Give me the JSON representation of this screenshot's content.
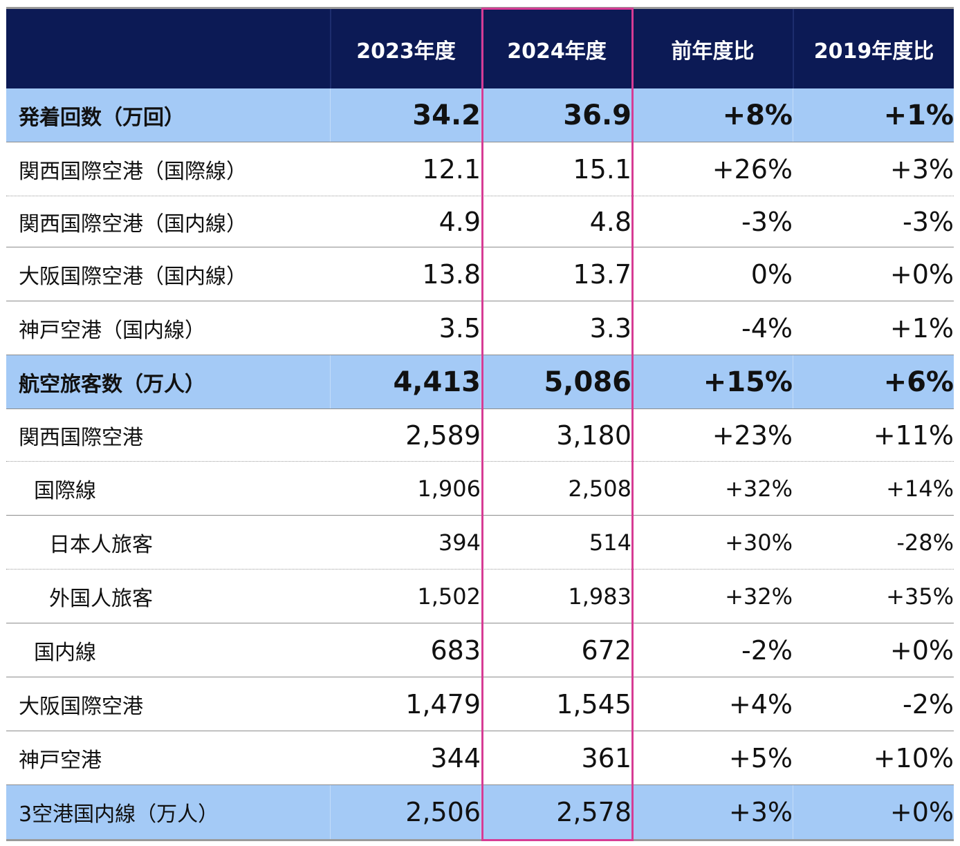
{
  "header": {
    "col0": "",
    "col1": "2023年度",
    "col2": "2024年度",
    "col3": "前年度比",
    "col4": "2019年度比"
  },
  "rows": [
    {
      "label": "発着回数（万回）",
      "v2023": "34.2",
      "v2024": "36.9",
      "yoy": "+8%",
      "vs2019": "+1%"
    },
    {
      "label": "関西国際空港（国際線）",
      "v2023": "12.1",
      "v2024": "15.1",
      "yoy": "+26%",
      "vs2019": "+3%"
    },
    {
      "label": "関西国際空港（国内線）",
      "v2023": "4.9",
      "v2024": "4.8",
      "yoy": "-3%",
      "vs2019": "-3%"
    },
    {
      "label": "大阪国際空港（国内線）",
      "v2023": "13.8",
      "v2024": "13.7",
      "yoy": "0%",
      "vs2019": "+0%"
    },
    {
      "label": "神戸空港（国内線）",
      "v2023": "3.5",
      "v2024": "3.3",
      "yoy": "-4%",
      "vs2019": "+1%"
    },
    {
      "label": "航空旅客数（万人）",
      "v2023": "4,413",
      "v2024": "5,086",
      "yoy": "+15%",
      "vs2019": "+6%"
    },
    {
      "label": "関西国際空港",
      "v2023": "2,589",
      "v2024": "3,180",
      "yoy": "+23%",
      "vs2019": "+11%"
    },
    {
      "label": "国際線",
      "v2023": "1,906",
      "v2024": "2,508",
      "yoy": "+32%",
      "vs2019": "+14%"
    },
    {
      "label": "日本人旅客",
      "v2023": "394",
      "v2024": "514",
      "yoy": "+30%",
      "vs2019": "-28%"
    },
    {
      "label": "外国人旅客",
      "v2023": "1,502",
      "v2024": "1,983",
      "yoy": "+32%",
      "vs2019": "+35%"
    },
    {
      "label": "国内線",
      "v2023": "683",
      "v2024": "672",
      "yoy": "-2%",
      "vs2019": "+0%"
    },
    {
      "label": "大阪国際空港",
      "v2023": "1,479",
      "v2024": "1,545",
      "yoy": "+4%",
      "vs2019": "-2%"
    },
    {
      "label": "神戸空港",
      "v2023": "344",
      "v2024": "361",
      "yoy": "+5%",
      "vs2019": "+10%"
    },
    {
      "label": "3空港国内線（万人）",
      "v2023": "2,506",
      "v2024": "2,578",
      "yoy": "+3%",
      "vs2019": "+0%"
    }
  ],
  "colors": {
    "header_bg": "#0c1a55",
    "section_bg": "#a4caf6",
    "highlight_border": "#d63c94"
  }
}
